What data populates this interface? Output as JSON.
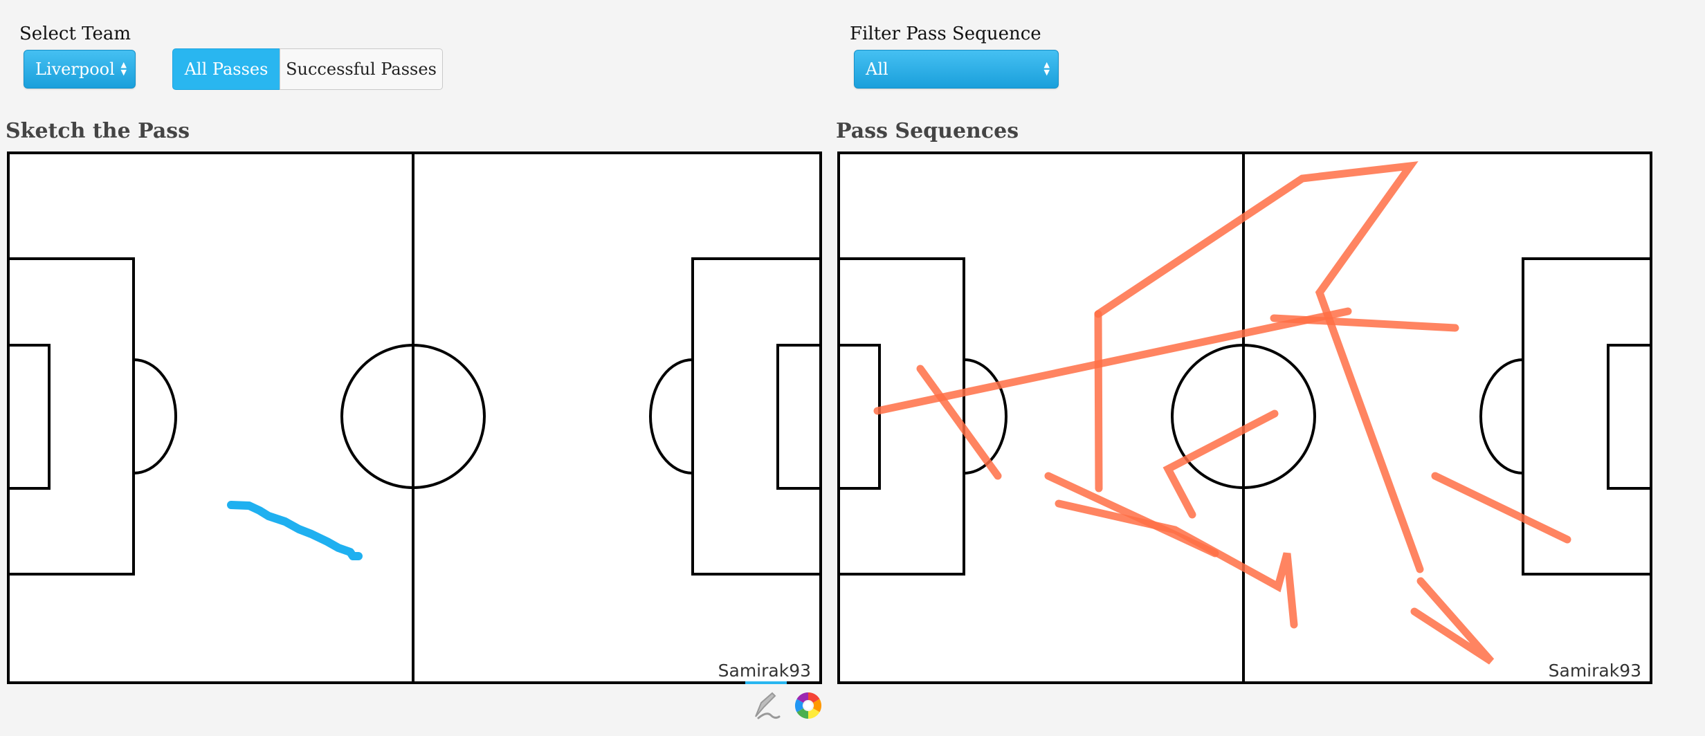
{
  "controls": {
    "team_label": "Select Team",
    "team_value": "Liverpool",
    "tabs": [
      {
        "label": "All Passes",
        "active": true
      },
      {
        "label": "Successful Passes",
        "active": false
      }
    ],
    "filter_label": "Filter Pass Sequence",
    "filter_value": "All"
  },
  "panels": {
    "sketch": {
      "title": "Sketch the Pass",
      "watermark": "Samirak93"
    },
    "sequences": {
      "title": "Pass Sequences",
      "watermark": "Samirak93"
    }
  },
  "toolbar": {
    "tools": [
      {
        "icon": "freehand-draw-icon",
        "active": true
      },
      {
        "icon": "color-wheel-icon",
        "active": false
      }
    ]
  },
  "colors": {
    "accent": "#29b6f0",
    "sketch_stroke": "#1fb0f0",
    "pass_stroke": "#ff6e45",
    "pitch_line": "#000000"
  }
}
